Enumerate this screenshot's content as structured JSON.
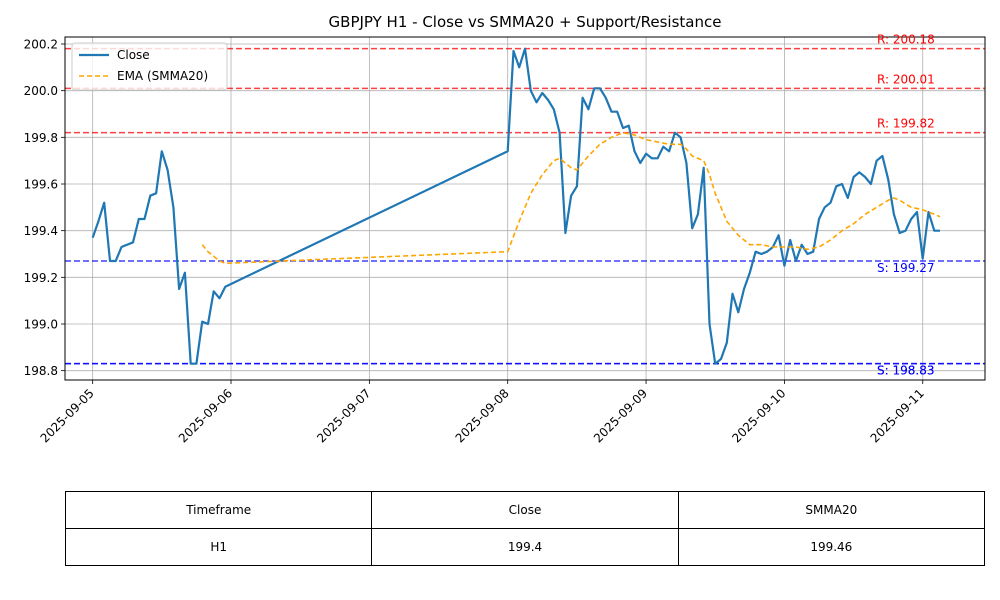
{
  "chart_data": {
    "type": "line",
    "title": "GBPJPY H1 - Close vs SMMA20 + Support/Resistance",
    "xlabel": "",
    "ylabel": "",
    "xlim": [
      "2025-09-04 19:12",
      "2025-09-11 10:48"
    ],
    "ylim": [
      198.76,
      200.23
    ],
    "x_ticks": [
      "2025-09-05",
      "2025-09-06",
      "2025-09-07",
      "2025-09-08",
      "2025-09-09",
      "2025-09-10",
      "2025-09-11"
    ],
    "y_ticks": [
      198.8,
      199.0,
      199.2,
      199.4,
      199.6,
      199.8,
      200.0,
      200.2
    ],
    "y_tick_labels": [
      "198.8",
      "199.0",
      "199.2",
      "199.4",
      "199.6",
      "199.8",
      "200.0",
      "200.2"
    ],
    "grid": true,
    "legend": "top-left",
    "series": [
      {
        "name": "Close",
        "color": "#1f77b4",
        "style": "solid",
        "points": [
          [
            "2025-09-05 00:00",
            199.37
          ],
          [
            "2025-09-05 01:00",
            199.44
          ],
          [
            "2025-09-05 02:00",
            199.52
          ],
          [
            "2025-09-05 03:00",
            199.27
          ],
          [
            "2025-09-05 04:00",
            199.27
          ],
          [
            "2025-09-05 05:00",
            199.33
          ],
          [
            "2025-09-05 07:00",
            199.35
          ],
          [
            "2025-09-05 08:00",
            199.45
          ],
          [
            "2025-09-05 09:00",
            199.45
          ],
          [
            "2025-09-05 10:00",
            199.55
          ],
          [
            "2025-09-05 11:00",
            199.56
          ],
          [
            "2025-09-05 12:00",
            199.74
          ],
          [
            "2025-09-05 13:00",
            199.66
          ],
          [
            "2025-09-05 14:00",
            199.5
          ],
          [
            "2025-09-05 15:00",
            199.15
          ],
          [
            "2025-09-05 16:00",
            199.22
          ],
          [
            "2025-09-05 17:00",
            198.83
          ],
          [
            "2025-09-05 18:00",
            198.83
          ],
          [
            "2025-09-05 19:00",
            199.01
          ],
          [
            "2025-09-05 20:00",
            199.0
          ],
          [
            "2025-09-05 21:00",
            199.14
          ],
          [
            "2025-09-05 22:00",
            199.11
          ],
          [
            "2025-09-05 23:00",
            199.16
          ],
          [
            "2025-09-08 00:00",
            199.74
          ],
          [
            "2025-09-08 01:00",
            200.17
          ],
          [
            "2025-09-08 02:00",
            200.1
          ],
          [
            "2025-09-08 03:00",
            200.18
          ],
          [
            "2025-09-08 04:00",
            200.0
          ],
          [
            "2025-09-08 05:00",
            199.95
          ],
          [
            "2025-09-08 06:00",
            199.99
          ],
          [
            "2025-09-08 07:00",
            199.96
          ],
          [
            "2025-09-08 08:00",
            199.92
          ],
          [
            "2025-09-08 09:00",
            199.82
          ],
          [
            "2025-09-08 10:00",
            199.39
          ],
          [
            "2025-09-08 11:00",
            199.55
          ],
          [
            "2025-09-08 12:00",
            199.59
          ],
          [
            "2025-09-08 13:00",
            199.97
          ],
          [
            "2025-09-08 14:00",
            199.92
          ],
          [
            "2025-09-08 15:00",
            200.01
          ],
          [
            "2025-09-08 16:00",
            200.01
          ],
          [
            "2025-09-08 17:00",
            199.97
          ],
          [
            "2025-09-08 18:00",
            199.91
          ],
          [
            "2025-09-08 19:00",
            199.91
          ],
          [
            "2025-09-08 20:00",
            199.84
          ],
          [
            "2025-09-08 21:00",
            199.85
          ],
          [
            "2025-09-08 22:00",
            199.74
          ],
          [
            "2025-09-08 23:00",
            199.69
          ],
          [
            "2025-09-09 00:00",
            199.73
          ],
          [
            "2025-09-09 01:00",
            199.71
          ],
          [
            "2025-09-09 02:00",
            199.71
          ],
          [
            "2025-09-09 03:00",
            199.76
          ],
          [
            "2025-09-09 04:00",
            199.74
          ],
          [
            "2025-09-09 05:00",
            199.82
          ],
          [
            "2025-09-09 06:00",
            199.8
          ],
          [
            "2025-09-09 07:00",
            199.69
          ],
          [
            "2025-09-09 08:00",
            199.41
          ],
          [
            "2025-09-09 09:00",
            199.47
          ],
          [
            "2025-09-09 10:00",
            199.67
          ],
          [
            "2025-09-09 11:00",
            199.0
          ],
          [
            "2025-09-09 12:00",
            198.83
          ],
          [
            "2025-09-09 13:00",
            198.85
          ],
          [
            "2025-09-09 14:00",
            198.92
          ],
          [
            "2025-09-09 15:00",
            199.13
          ],
          [
            "2025-09-09 16:00",
            199.05
          ],
          [
            "2025-09-09 17:00",
            199.15
          ],
          [
            "2025-09-09 18:00",
            199.22
          ],
          [
            "2025-09-09 19:00",
            199.31
          ],
          [
            "2025-09-09 20:00",
            199.3
          ],
          [
            "2025-09-09 21:00",
            199.31
          ],
          [
            "2025-09-09 22:00",
            199.33
          ],
          [
            "2025-09-09 23:00",
            199.38
          ],
          [
            "2025-09-10 00:00",
            199.25
          ],
          [
            "2025-09-10 01:00",
            199.36
          ],
          [
            "2025-09-10 02:00",
            199.27
          ],
          [
            "2025-09-10 03:00",
            199.34
          ],
          [
            "2025-09-10 04:00",
            199.3
          ],
          [
            "2025-09-10 05:00",
            199.31
          ],
          [
            "2025-09-10 06:00",
            199.45
          ],
          [
            "2025-09-10 07:00",
            199.5
          ],
          [
            "2025-09-10 08:00",
            199.52
          ],
          [
            "2025-09-10 09:00",
            199.59
          ],
          [
            "2025-09-10 10:00",
            199.6
          ],
          [
            "2025-09-10 11:00",
            199.54
          ],
          [
            "2025-09-10 12:00",
            199.63
          ],
          [
            "2025-09-10 13:00",
            199.65
          ],
          [
            "2025-09-10 14:00",
            199.63
          ],
          [
            "2025-09-10 15:00",
            199.6
          ],
          [
            "2025-09-10 16:00",
            199.7
          ],
          [
            "2025-09-10 17:00",
            199.72
          ],
          [
            "2025-09-10 18:00",
            199.62
          ],
          [
            "2025-09-10 19:00",
            199.47
          ],
          [
            "2025-09-10 20:00",
            199.39
          ],
          [
            "2025-09-10 21:00",
            199.4
          ],
          [
            "2025-09-10 22:00",
            199.45
          ],
          [
            "2025-09-10 23:00",
            199.48
          ],
          [
            "2025-09-11 00:00",
            199.28
          ],
          [
            "2025-09-11 01:00",
            199.48
          ],
          [
            "2025-09-11 02:00",
            199.4
          ],
          [
            "2025-09-11 03:00",
            199.4
          ]
        ]
      },
      {
        "name": "EMA (SMMA20)",
        "color": "#ffa500",
        "style": "dashed",
        "points": [
          [
            "2025-09-05 19:00",
            199.34
          ],
          [
            "2025-09-05 20:00",
            199.31
          ],
          [
            "2025-09-05 22:00",
            199.27
          ],
          [
            "2025-09-05 23:00",
            199.26
          ],
          [
            "2025-09-08 00:00",
            199.31
          ],
          [
            "2025-09-08 02:00",
            199.44
          ],
          [
            "2025-09-08 04:00",
            199.56
          ],
          [
            "2025-09-08 06:00",
            199.64
          ],
          [
            "2025-09-08 08:00",
            199.7
          ],
          [
            "2025-09-08 09:00",
            199.71
          ],
          [
            "2025-09-08 11:00",
            199.67
          ],
          [
            "2025-09-08 12:00",
            199.66
          ],
          [
            "2025-09-08 14:00",
            199.72
          ],
          [
            "2025-09-08 16:00",
            199.77
          ],
          [
            "2025-09-08 18:00",
            199.8
          ],
          [
            "2025-09-08 20:00",
            199.82
          ],
          [
            "2025-09-08 22:00",
            199.81
          ],
          [
            "2025-09-09 00:00",
            199.79
          ],
          [
            "2025-09-09 02:00",
            199.78
          ],
          [
            "2025-09-09 04:00",
            199.77
          ],
          [
            "2025-09-09 06:00",
            199.77
          ],
          [
            "2025-09-09 07:00",
            199.75
          ],
          [
            "2025-09-09 08:00",
            199.72
          ],
          [
            "2025-09-09 10:00",
            199.7
          ],
          [
            "2025-09-09 11:00",
            199.64
          ],
          [
            "2025-09-09 12:00",
            199.56
          ],
          [
            "2025-09-09 14:00",
            199.44
          ],
          [
            "2025-09-09 16:00",
            199.38
          ],
          [
            "2025-09-09 18:00",
            199.34
          ],
          [
            "2025-09-09 20:00",
            199.34
          ],
          [
            "2025-09-09 22:00",
            199.33
          ],
          [
            "2025-09-10 00:00",
            199.33
          ],
          [
            "2025-09-10 02:00",
            199.33
          ],
          [
            "2025-09-10 04:00",
            199.32
          ],
          [
            "2025-09-10 06:00",
            199.33
          ],
          [
            "2025-09-10 08:00",
            199.36
          ],
          [
            "2025-09-10 10:00",
            199.4
          ],
          [
            "2025-09-10 12:00",
            199.43
          ],
          [
            "2025-09-10 14:00",
            199.47
          ],
          [
            "2025-09-10 16:00",
            199.5
          ],
          [
            "2025-09-10 18:00",
            199.53
          ],
          [
            "2025-09-10 19:00",
            199.54
          ],
          [
            "2025-09-10 20:00",
            199.53
          ],
          [
            "2025-09-10 22:00",
            199.5
          ],
          [
            "2025-09-11 00:00",
            199.49
          ],
          [
            "2025-09-11 02:00",
            199.47
          ],
          [
            "2025-09-11 03:00",
            199.46
          ]
        ]
      }
    ],
    "resistance_levels": [
      {
        "value": 200.18,
        "label": "R: 200.18",
        "color": "#ff0000"
      },
      {
        "value": 200.01,
        "label": "R: 200.01",
        "color": "#ff0000"
      },
      {
        "value": 199.82,
        "label": "R: 199.82",
        "color": "#ff0000"
      }
    ],
    "support_levels": [
      {
        "value": 199.27,
        "label": "S: 199.27",
        "color": "#0000ff"
      },
      {
        "value": 198.83,
        "label": "S: 198.83",
        "color": "#0000ff"
      },
      {
        "value": 198.83,
        "label": "S: 198.83",
        "color": "#0000ff"
      }
    ]
  },
  "table": {
    "headers": [
      "Timeframe",
      "Close",
      "SMMA20"
    ],
    "rows": [
      [
        "H1",
        "199.4",
        "199.46"
      ]
    ]
  }
}
